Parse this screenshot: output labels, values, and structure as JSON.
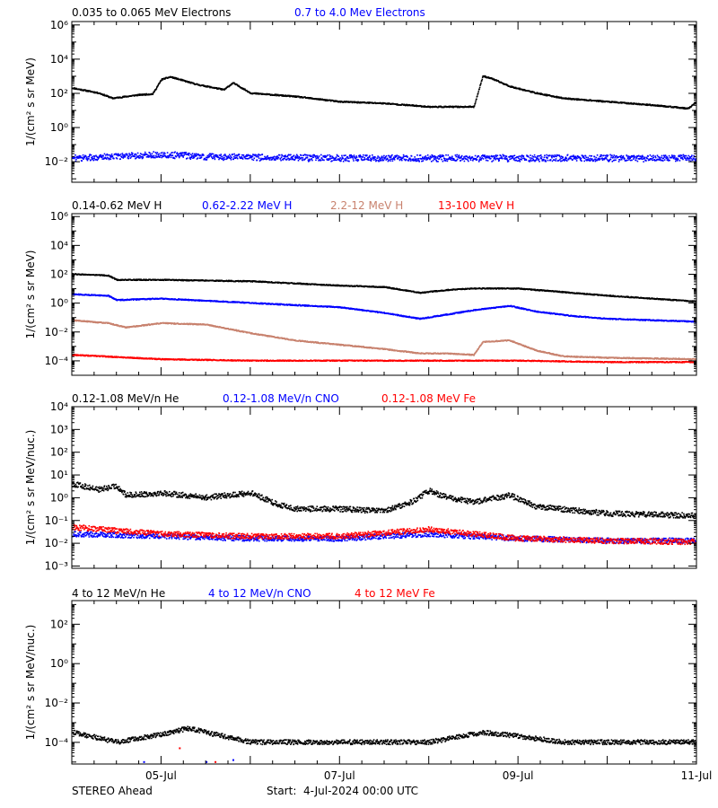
{
  "footer": {
    "spacecraft": "STEREO Ahead",
    "start": "Start:  4-Jul-2024 00:00 UTC"
  },
  "x_axis": {
    "ticks": [
      {
        "day": 1,
        "label": "05-Jul"
      },
      {
        "day": 3,
        "label": "07-Jul"
      },
      {
        "day": 5,
        "label": "09-Jul"
      },
      {
        "day": 7,
        "label": "11-Jul"
      }
    ],
    "start": "2024-07-04",
    "end": "2024-07-11"
  },
  "chart_data": [
    {
      "type": "scatter",
      "ylabel": "1/(cm² s sr MeV)",
      "yscale": "log",
      "ylim_exp": [
        -3.2,
        6.2
      ],
      "major_exp": [
        -2,
        0,
        2,
        4,
        6
      ],
      "legend": [
        {
          "label": "0.035 to 0.065 MeV Electrons",
          "color": "#000000"
        },
        {
          "label": "0.7 to 4.0 Mev Electrons",
          "color": "#0000ff"
        }
      ],
      "series": [
        {
          "name": "0.035 to 0.065 MeV Electrons",
          "color": "#000000",
          "points": [
            [
              0,
              2.3
            ],
            [
              0.3,
              2.0
            ],
            [
              0.45,
              1.7
            ],
            [
              0.6,
              1.8
            ],
            [
              0.75,
              1.9
            ],
            [
              0.9,
              1.95
            ],
            [
              1.0,
              2.8
            ],
            [
              1.1,
              2.95
            ],
            [
              1.4,
              2.5
            ],
            [
              1.7,
              2.2
            ],
            [
              1.8,
              2.6
            ],
            [
              2.0,
              2.0
            ],
            [
              2.5,
              1.8
            ],
            [
              3.0,
              1.5
            ],
            [
              3.5,
              1.4
            ],
            [
              4.0,
              1.2
            ],
            [
              4.5,
              1.2
            ],
            [
              4.6,
              3.0
            ],
            [
              4.7,
              2.85
            ],
            [
              4.9,
              2.4
            ],
            [
              5.2,
              2.0
            ],
            [
              5.5,
              1.7
            ],
            [
              6.0,
              1.5
            ],
            [
              6.5,
              1.3
            ],
            [
              6.9,
              1.1
            ],
            [
              7.0,
              1.5
            ]
          ]
        },
        {
          "name": "0.7 to 4.0 Mev Electrons",
          "color": "#0000ff",
          "points": [
            [
              0,
              -1.8
            ],
            [
              1.0,
              -1.6
            ],
            [
              1.5,
              -1.7
            ],
            [
              2.0,
              -1.75
            ],
            [
              3.0,
              -1.8
            ],
            [
              4.0,
              -1.8
            ],
            [
              5.0,
              -1.8
            ],
            [
              6.0,
              -1.8
            ],
            [
              7.0,
              -1.8
            ]
          ]
        }
      ]
    },
    {
      "type": "scatter",
      "ylabel": "1/(cm² s sr MeV)",
      "yscale": "log",
      "ylim_exp": [
        -5,
        6.2
      ],
      "major_exp": [
        -4,
        -2,
        0,
        2,
        4,
        6
      ],
      "legend": [
        {
          "label": "0.14-0.62 MeV H",
          "color": "#000000"
        },
        {
          "label": "0.62-2.22 MeV H",
          "color": "#0000ff"
        },
        {
          "label": "2.2-12 MeV H",
          "color": "#c8826e"
        },
        {
          "label": "13-100 MeV H",
          "color": "#ff0000"
        }
      ],
      "series": [
        {
          "name": "0.14-0.62 MeV H",
          "color": "#000000",
          "points": [
            [
              0,
              2.0
            ],
            [
              0.4,
              1.9
            ],
            [
              0.5,
              1.6
            ],
            [
              1.0,
              1.6
            ],
            [
              2.0,
              1.5
            ],
            [
              3.0,
              1.2
            ],
            [
              3.5,
              1.1
            ],
            [
              3.9,
              0.7
            ],
            [
              4.2,
              0.9
            ],
            [
              4.5,
              1.0
            ],
            [
              5.0,
              1.0
            ],
            [
              5.4,
              0.8
            ],
            [
              6.0,
              0.5
            ],
            [
              6.5,
              0.3
            ],
            [
              7.0,
              0.1
            ]
          ]
        },
        {
          "name": "0.62-2.22 MeV H",
          "color": "#0000ff",
          "points": [
            [
              0,
              0.6
            ],
            [
              0.4,
              0.5
            ],
            [
              0.5,
              0.2
            ],
            [
              1.0,
              0.3
            ],
            [
              2.0,
              0.0
            ],
            [
              3.0,
              -0.3
            ],
            [
              3.5,
              -0.7
            ],
            [
              3.9,
              -1.1
            ],
            [
              4.2,
              -0.8
            ],
            [
              4.5,
              -0.5
            ],
            [
              4.9,
              -0.2
            ],
            [
              5.2,
              -0.6
            ],
            [
              5.6,
              -0.9
            ],
            [
              6.0,
              -1.1
            ],
            [
              6.5,
              -1.2
            ],
            [
              7.0,
              -1.3
            ]
          ]
        },
        {
          "name": "2.2-12 MeV H",
          "color": "#c8826e",
          "points": [
            [
              0,
              -1.2
            ],
            [
              0.4,
              -1.4
            ],
            [
              0.6,
              -1.7
            ],
            [
              1.0,
              -1.4
            ],
            [
              1.5,
              -1.5
            ],
            [
              2.0,
              -2.1
            ],
            [
              2.5,
              -2.6
            ],
            [
              3.0,
              -2.9
            ],
            [
              3.5,
              -3.2
            ],
            [
              3.9,
              -3.5
            ],
            [
              4.2,
              -3.5
            ],
            [
              4.5,
              -3.6
            ],
            [
              4.6,
              -2.7
            ],
            [
              4.9,
              -2.6
            ],
            [
              5.2,
              -3.3
            ],
            [
              5.5,
              -3.7
            ],
            [
              6.0,
              -3.8
            ],
            [
              7.0,
              -3.9
            ]
          ]
        },
        {
          "name": "13-100 MeV H",
          "color": "#ff0000",
          "points": [
            [
              0,
              -3.6
            ],
            [
              1.0,
              -3.9
            ],
            [
              2.0,
              -4.0
            ],
            [
              4.0,
              -4.0
            ],
            [
              5.0,
              -4.0
            ],
            [
              6.0,
              -4.1
            ],
            [
              7.0,
              -4.1
            ]
          ]
        }
      ]
    },
    {
      "type": "scatter",
      "ylabel": "1/(cm² s sr MeV/nuc.)",
      "yscale": "log",
      "ylim_exp": [
        -3.1,
        4
      ],
      "major_exp": [
        -3,
        -2,
        -1,
        0,
        1,
        2,
        3,
        4
      ],
      "legend": [
        {
          "label": "0.12-1.08 MeV/n He",
          "color": "#000000"
        },
        {
          "label": "0.12-1.08 MeV/n CNO",
          "color": "#0000ff"
        },
        {
          "label": "0.12-1.08 MeV Fe",
          "color": "#ff0000"
        }
      ],
      "series": [
        {
          "name": "0.12-1.08 MeV/n He",
          "color": "#000000",
          "points": [
            [
              0,
              0.6
            ],
            [
              0.3,
              0.35
            ],
            [
              0.5,
              0.5
            ],
            [
              0.6,
              0.1
            ],
            [
              1.0,
              0.2
            ],
            [
              1.5,
              0.0
            ],
            [
              2.0,
              0.2
            ],
            [
              2.3,
              -0.3
            ],
            [
              2.5,
              -0.5
            ],
            [
              3.0,
              -0.5
            ],
            [
              3.5,
              -0.6
            ],
            [
              3.8,
              -0.2
            ],
            [
              4.0,
              0.3
            ],
            [
              4.2,
              0.0
            ],
            [
              4.5,
              -0.2
            ],
            [
              4.9,
              0.1
            ],
            [
              5.2,
              -0.4
            ],
            [
              6.0,
              -0.7
            ],
            [
              7.0,
              -0.8
            ]
          ]
        },
        {
          "name": "0.12-1.08 MeV/n CNO",
          "color": "#0000ff",
          "points": [
            [
              0,
              -1.6
            ],
            [
              1.0,
              -1.7
            ],
            [
              2.0,
              -1.8
            ],
            [
              3.0,
              -1.8
            ],
            [
              4.0,
              -1.6
            ],
            [
              5.0,
              -1.8
            ],
            [
              6.0,
              -1.9
            ],
            [
              7.0,
              -1.9
            ]
          ]
        },
        {
          "name": "0.12-1.08 MeV Fe",
          "color": "#ff0000",
          "points": [
            [
              0,
              -1.3
            ],
            [
              1.0,
              -1.6
            ],
            [
              2.0,
              -1.7
            ],
            [
              3.0,
              -1.7
            ],
            [
              4.0,
              -1.4
            ],
            [
              5.0,
              -1.8
            ],
            [
              6.0,
              -1.9
            ],
            [
              7.0,
              -1.95
            ]
          ]
        }
      ]
    },
    {
      "type": "scatter",
      "ylabel": "1/(cm² s sr MeV/nuc.)",
      "yscale": "log",
      "ylim_exp": [
        -5.1,
        3.2
      ],
      "major_exp": [
        -4,
        -2,
        0,
        2
      ],
      "legend": [
        {
          "label": "4 to 12 MeV/n He",
          "color": "#000000"
        },
        {
          "label": "4 to 12 MeV/n CNO",
          "color": "#0000ff"
        },
        {
          "label": "4 to 12 MeV Fe",
          "color": "#ff0000"
        }
      ],
      "series": [
        {
          "name": "4 to 12 MeV/n He",
          "color": "#000000",
          "points": [
            [
              0,
              -3.5
            ],
            [
              0.5,
              -4.0
            ],
            [
              1.0,
              -3.6
            ],
            [
              1.3,
              -3.3
            ],
            [
              1.6,
              -3.6
            ],
            [
              2.0,
              -4.0
            ],
            [
              3.0,
              -4.0
            ],
            [
              4.0,
              -4.0
            ],
            [
              4.6,
              -3.5
            ],
            [
              5.0,
              -3.7
            ],
            [
              5.5,
              -4.0
            ],
            [
              6.0,
              -4.0
            ],
            [
              7.0,
              -4.0
            ]
          ]
        },
        {
          "name": "4 to 12 MeV/n CNO",
          "color": "#0000ff",
          "points": [
            [
              0.8,
              -5.0
            ],
            [
              1.5,
              -5.0
            ],
            [
              1.8,
              -4.9
            ]
          ]
        },
        {
          "name": "4 to 12 MeV Fe",
          "color": "#ff0000",
          "points": [
            [
              1.2,
              -4.3
            ],
            [
              1.6,
              -5.0
            ]
          ]
        }
      ]
    }
  ]
}
